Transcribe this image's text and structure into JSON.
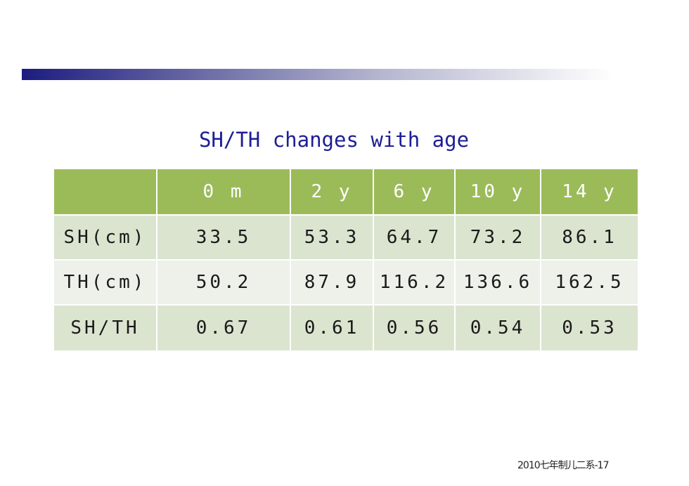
{
  "title": "SH/TH changes with age",
  "table": {
    "headers": [
      "",
      "0 m",
      "2 y",
      "6 y",
      "10 y",
      "14 y"
    ],
    "rows": [
      {
        "label": "SH(cm)",
        "values": [
          "33.5",
          "53.3",
          "64.7",
          "73.2",
          "86.1"
        ]
      },
      {
        "label": "TH(cm)",
        "values": [
          "50.2",
          "87.9",
          "116.2",
          "136.6",
          "162.5"
        ]
      },
      {
        "label": "SH/TH",
        "values": [
          "0.67",
          "0.61",
          "0.56",
          "0.54",
          "0.53"
        ]
      }
    ]
  },
  "footer": "2010七年制儿二系-17",
  "colors": {
    "header_bg": "#9bbb59",
    "row_dark": "#dbe4cf",
    "row_light": "#eef1ea",
    "title": "#1e1e96",
    "bar_start": "#1c1c80"
  }
}
